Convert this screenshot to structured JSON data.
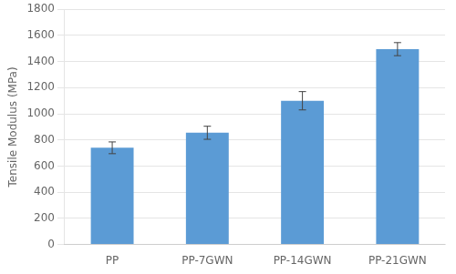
{
  "chart_data": {
    "type": "bar",
    "categories": [
      "PP",
      "PP-7GWN",
      "PP-14GWN",
      "PP-21GWN"
    ],
    "values": [
      740,
      855,
      1100,
      1495
    ],
    "errors": [
      45,
      50,
      70,
      50
    ],
    "color": "#5B9BD5",
    "ylabel": "Tensile Modulus (MPa)",
    "ylim": [
      0,
      1800
    ],
    "yticks": [
      0,
      200,
      400,
      600,
      800,
      1000,
      1200,
      1400,
      1600,
      1800
    ],
    "grid": true
  }
}
